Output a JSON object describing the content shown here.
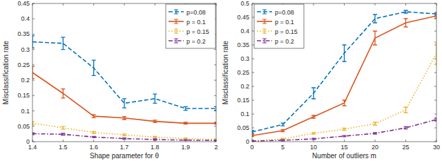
{
  "chart_data": [
    {
      "type": "line",
      "x_label": "Shape parameter for θ",
      "y_label": "Misclassification rate",
      "x": [
        1.4,
        1.5,
        1.6,
        1.7,
        1.8,
        1.9,
        2
      ],
      "xlim": [
        1.4,
        2
      ],
      "xticks": [
        1.4,
        1.5,
        1.6,
        1.7,
        1.8,
        1.9,
        2
      ],
      "ylim": [
        0,
        0.45
      ],
      "yticks": [
        0,
        0.05,
        0.1,
        0.15,
        0.2,
        0.25,
        0.3,
        0.35,
        0.4,
        0.45
      ],
      "legend": "upper right",
      "series": [
        {
          "name": "p=0.08",
          "color": "#0072BD",
          "line_style": "dashed",
          "values": [
            0.325,
            0.32,
            0.24,
            0.125,
            0.14,
            0.108,
            0.108
          ],
          "errors": [
            0.02,
            0.02,
            0.025,
            0.015,
            0.015,
            0.006,
            0.006
          ]
        },
        {
          "name": "p = 0.1",
          "color": "#D95319",
          "line_style": "solid",
          "values": [
            0.225,
            0.157,
            0.083,
            0.077,
            0.066,
            0.06,
            0.06
          ],
          "errors": [
            0.02,
            0.015,
            0.005,
            0.005,
            0.004,
            0.003,
            0.003
          ]
        },
        {
          "name": "p = 0.15",
          "color": "#EDB120",
          "line_style": "dotted",
          "values": [
            0.06,
            0.045,
            0.03,
            0.022,
            0.015,
            0.01,
            0.007
          ],
          "errors": [
            0.005,
            0.004,
            0.003,
            0.003,
            0.002,
            0.002,
            0.002
          ]
        },
        {
          "name": "p = 0.2",
          "color": "#7E2F8E",
          "line_style": "dashdot",
          "values": [
            0.026,
            0.024,
            0.015,
            0.01,
            0.007,
            0.005,
            0.004
          ],
          "errors": [
            0.003,
            0.003,
            0.002,
            0.002,
            0.002,
            0.001,
            0.001
          ]
        }
      ]
    },
    {
      "type": "line",
      "x_label": "Number of outliers m",
      "y_label": "Misclassification rate",
      "x": [
        0,
        5,
        10,
        15,
        20,
        25,
        30
      ],
      "xlim": [
        0,
        30
      ],
      "xticks": [
        0,
        5,
        10,
        15,
        20,
        25,
        30
      ],
      "ylim": [
        0,
        0.5
      ],
      "yticks": [
        0,
        0.05,
        0.1,
        0.15,
        0.2,
        0.25,
        0.3,
        0.35,
        0.4,
        0.45,
        0.5
      ],
      "legend": "upper left",
      "series": [
        {
          "name": "p=0.08",
          "color": "#0072BD",
          "line_style": "dashed",
          "values": [
            0.035,
            0.062,
            0.175,
            0.32,
            0.445,
            0.47,
            0.462
          ],
          "errors": [
            0.005,
            0.005,
            0.02,
            0.03,
            0.015,
            0.005,
            0.005
          ]
        },
        {
          "name": "p = 0.1",
          "color": "#D95319",
          "line_style": "solid",
          "values": [
            0.022,
            0.04,
            0.09,
            0.14,
            0.375,
            0.43,
            0.455
          ],
          "errors": [
            0.003,
            0.004,
            0.005,
            0.01,
            0.025,
            0.015,
            0.01
          ]
        },
        {
          "name": "p = 0.15",
          "color": "#EDB120",
          "line_style": "dotted",
          "values": [
            0.003,
            0.01,
            0.03,
            0.045,
            0.065,
            0.115,
            0.32
          ],
          "errors": [
            0.002,
            0.002,
            0.003,
            0.004,
            0.005,
            0.01,
            0.04
          ]
        },
        {
          "name": "p = 0.2",
          "color": "#7E2F8E",
          "line_style": "dashdot",
          "values": [
            0.002,
            0.005,
            0.01,
            0.02,
            0.03,
            0.05,
            0.08
          ],
          "errors": [
            0.002,
            0.002,
            0.002,
            0.002,
            0.003,
            0.004,
            0.005
          ]
        }
      ]
    }
  ]
}
